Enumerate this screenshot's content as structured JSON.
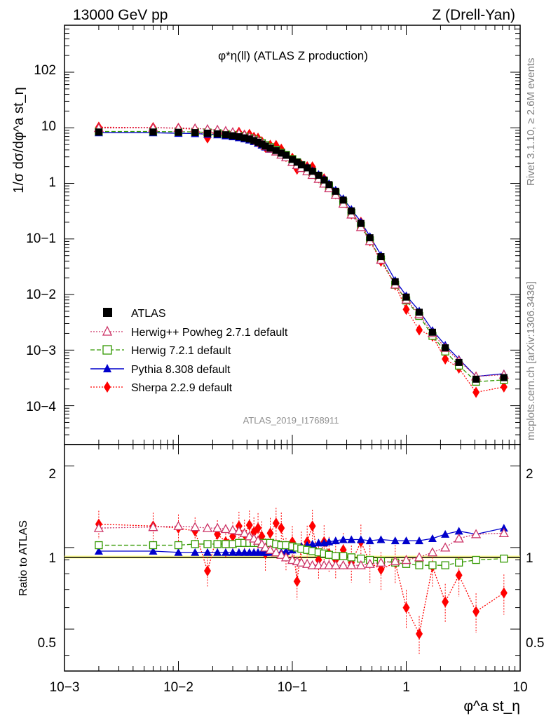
{
  "header": {
    "left": "13000 GeV pp",
    "right": "Z (Drell-Yan)"
  },
  "side_text": {
    "rivet": "Rivet 3.1.10, ≥ 2.6M events",
    "mcplots": "mcplots.cern.ch [arXiv:1306.3436]"
  },
  "chart_data": {
    "type": "scatter",
    "title": "φ*η(ll) (ATLAS Z production)",
    "analysis_id": "ATLAS_2019_I1768911",
    "xlabel": "φ^a st_η",
    "ylabel": "1/σ dσ/dφ^a st_η",
    "ratio_ylabel": "Ratio to ATLAS",
    "x_scale": "log",
    "y_scale": "log",
    "xlim": [
      0.001,
      10
    ],
    "ylim": [
      2e-05,
      700
    ],
    "ratio_ylim": [
      0.35,
      2.4
    ],
    "x_tick_labels": [
      "10−3",
      "10−2",
      "10−1",
      "1",
      "10"
    ],
    "y_tick_labels": [
      "10−4",
      "10−3",
      "10−2",
      "10−1",
      "1",
      "10",
      "102"
    ],
    "ratio_tick_labels": [
      "0.5",
      "1",
      "2"
    ],
    "legend_position": "lower-left",
    "x": [
      0.002,
      0.006,
      0.01,
      0.014,
      0.018,
      0.022,
      0.026,
      0.03,
      0.034,
      0.038,
      0.042,
      0.046,
      0.05,
      0.054,
      0.058,
      0.064,
      0.072,
      0.08,
      0.088,
      0.1,
      0.11,
      0.12,
      0.135,
      0.15,
      0.17,
      0.19,
      0.21,
      0.24,
      0.28,
      0.33,
      0.4,
      0.48,
      0.6,
      0.8,
      1.0,
      1.3,
      1.7,
      2.2,
      2.9,
      4.1,
      7.2
    ],
    "series": [
      {
        "name": "ATLAS",
        "color": "#000000",
        "marker": "square-filled",
        "values": [
          8.4,
          8.4,
          8.3,
          8.2,
          8.0,
          7.8,
          7.5,
          7.2,
          6.9,
          6.6,
          6.3,
          5.9,
          5.5,
          5.1,
          4.7,
          4.3,
          3.9,
          3.5,
          3.2,
          2.7,
          2.4,
          2.15,
          1.9,
          1.65,
          1.4,
          1.15,
          0.95,
          0.72,
          0.5,
          0.32,
          0.19,
          0.105,
          0.048,
          0.017,
          0.009,
          0.0048,
          0.0021,
          0.0011,
          0.0006,
          0.0003,
          0.00032
        ]
      },
      {
        "name": "Herwig++ Powheg 2.7.1 default",
        "color": "#cc3366",
        "marker": "triangle-open",
        "line": "dotted",
        "ratio": [
          1.18,
          1.19,
          1.2,
          1.19,
          1.18,
          1.18,
          1.17,
          1.16,
          1.15,
          1.13,
          1.1,
          1.08,
          1.06,
          1.03,
          1.0,
          0.98,
          0.96,
          0.94,
          0.92,
          0.9,
          0.89,
          0.88,
          0.87,
          0.86,
          0.86,
          0.86,
          0.86,
          0.86,
          0.86,
          0.86,
          0.86,
          0.87,
          0.88,
          0.89,
          0.9,
          0.92,
          0.96,
          1.0,
          1.08,
          1.12,
          1.13
        ]
      },
      {
        "name": "Herwig 7.2.1 default",
        "color": "#339900",
        "marker": "square-open",
        "line": "dashed",
        "ratio": [
          1.02,
          1.02,
          1.02,
          1.03,
          1.03,
          1.03,
          1.03,
          1.03,
          1.04,
          1.04,
          1.04,
          1.04,
          1.04,
          1.04,
          1.04,
          1.04,
          1.03,
          1.02,
          1.02,
          1.01,
          1.0,
          0.99,
          0.98,
          0.97,
          0.96,
          0.95,
          0.94,
          0.93,
          0.93,
          0.92,
          0.91,
          0.9,
          0.89,
          0.88,
          0.87,
          0.86,
          0.86,
          0.86,
          0.88,
          0.9,
          0.91
        ]
      },
      {
        "name": "Pythia 8.308 default",
        "color": "#0000cc",
        "marker": "triangle-filled",
        "line": "solid",
        "ratio": [
          0.97,
          0.97,
          0.96,
          0.96,
          0.96,
          0.96,
          0.96,
          0.96,
          0.96,
          0.96,
          0.96,
          0.96,
          0.96,
          0.96,
          0.96,
          0.96,
          0.96,
          0.96,
          0.97,
          0.98,
          1.0,
          1.01,
          1.02,
          1.03,
          1.04,
          1.04,
          1.05,
          1.06,
          1.07,
          1.07,
          1.07,
          1.06,
          1.07,
          1.06,
          1.06,
          1.06,
          1.08,
          1.12,
          1.15,
          1.12,
          1.18
        ]
      },
      {
        "name": "Sherpa 2.2.9 default",
        "color": "#ff0000",
        "marker": "diamond-filled",
        "line": "dotted",
        "ratio": [
          1.22,
          1.2,
          1.18,
          1.15,
          0.82,
          1.12,
          1.05,
          1.1,
          1.2,
          1.12,
          1.21,
          1.14,
          1.18,
          1.1,
          0.95,
          1.13,
          1.23,
          1.18,
          0.95,
          1.05,
          0.75,
          1.0,
          1.05,
          1.2,
          0.9,
          1.05,
          0.95,
          0.9,
          0.98,
          0.88,
          1.05,
          0.88,
          0.83,
          0.88,
          0.6,
          0.48,
          0.85,
          0.63,
          0.79,
          0.58,
          0.68
        ]
      }
    ]
  }
}
